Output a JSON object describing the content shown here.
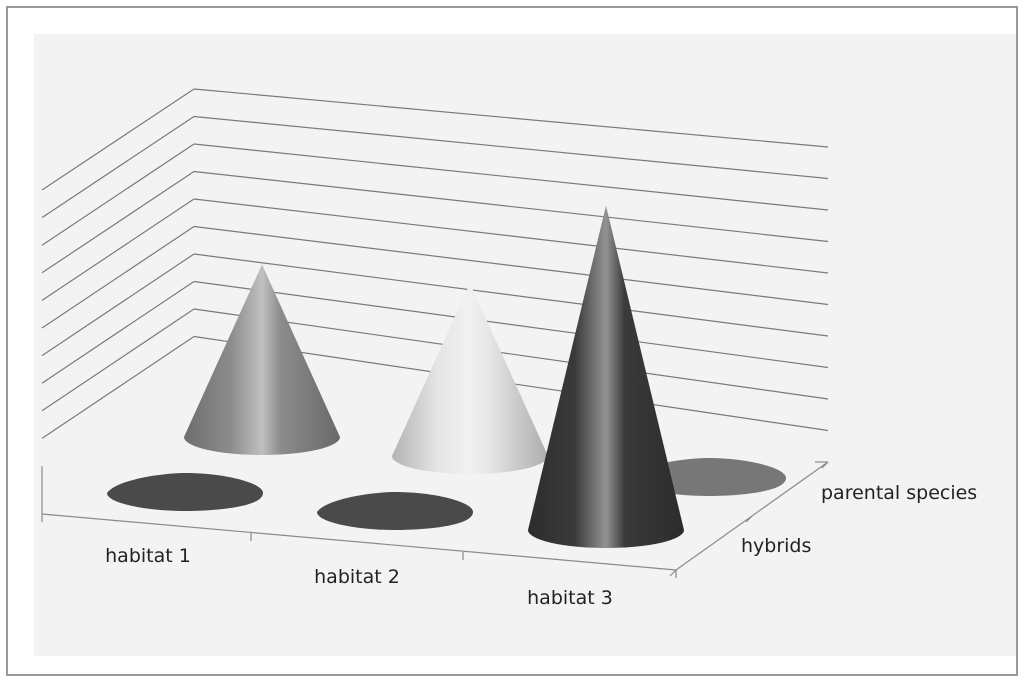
{
  "chart_data": {
    "type": "3d-cone-column",
    "title": "",
    "xlabel": "",
    "ylabel": "",
    "categories": [
      "habitat 1",
      "habitat 2",
      "habitat 3"
    ],
    "series_labels": [
      "parental species",
      "hybrids"
    ],
    "series": [
      {
        "name": "parental species",
        "values": [
          5,
          5,
          0
        ]
      },
      {
        "name": "hybrids",
        "values": [
          0,
          0,
          8
        ]
      }
    ],
    "ylim": [
      0,
      10
    ],
    "gridlines": 10,
    "grid": true,
    "legend": "none",
    "colors": {
      "habitat 1 / parental species": "#8c8c8c",
      "habitat 2 / parental species": "#e6e6e6",
      "habitat 3 / hybrids": "#3a3a3a",
      "zero_value_disc": "#4a4a4a",
      "zero_value_disc_back": "#777777"
    }
  }
}
